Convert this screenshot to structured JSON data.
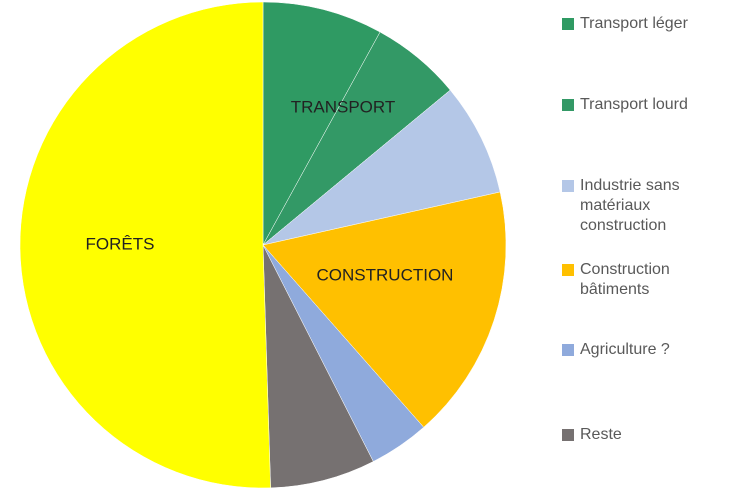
{
  "chart_data": {
    "type": "pie",
    "categories": [
      "Transport léger",
      "Transport lourd",
      "Industrie sans matériaux construction",
      "Construction bâtiments",
      "Agriculture ?",
      "Reste",
      "Forêts"
    ],
    "values": [
      8,
      6,
      7.5,
      17,
      4,
      7,
      50.5
    ],
    "colors": [
      "#2f9a63",
      "#339966",
      "#b4c7e7",
      "#ffc000",
      "#8faadc",
      "#767171",
      "#ffff00"
    ],
    "annotations": [
      "TRANSPORT",
      "CONSTRUCTION",
      "FORÊTS"
    ],
    "legend": "right"
  }
}
